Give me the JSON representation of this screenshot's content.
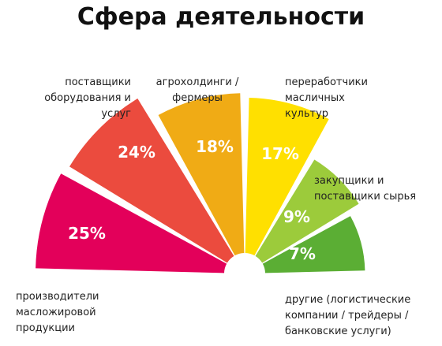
{
  "chart_data": {
    "type": "pie",
    "title": "Сфера деятельности",
    "slices": [
      {
        "label_lines": [
          "производители",
          "масложировой",
          "продукции"
        ],
        "value": 25,
        "value_label": "25%",
        "color": "#E3005A"
      },
      {
        "label_lines": [
          "поставщики",
          "оборудования и",
          "услуг"
        ],
        "value": 24,
        "value_label": "24%",
        "color": "#EB4B3E"
      },
      {
        "label_lines": [
          "агрохолдинги /",
          "фермеры"
        ],
        "value": 18,
        "value_label": "18%",
        "color": "#F0AB15"
      },
      {
        "label_lines": [
          "переработчики",
          "масличных",
          "культур"
        ],
        "value": 17,
        "value_label": "17%",
        "color": "#FFE000"
      },
      {
        "label_lines": [
          "закупщики и",
          "поставщики сырья"
        ],
        "value": 9,
        "value_label": "9%",
        "color": "#9CCB3B"
      },
      {
        "label_lines": [
          "другие (логистические",
          "компании / трейдеры /",
          "банковские услуги)"
        ],
        "value": 7,
        "value_label": "7%",
        "color": "#5BAE34"
      }
    ]
  }
}
